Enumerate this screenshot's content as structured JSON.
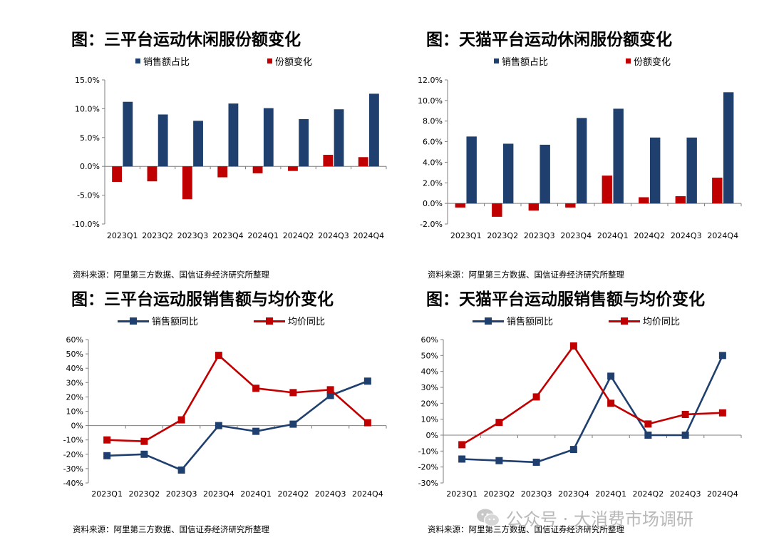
{
  "colors": {
    "navy": "#1f3f6e",
    "red": "#c00000",
    "axis": "#7f7f7f",
    "grid": "#d9d9d9"
  },
  "watermark": {
    "text": "公众号 · 大消费市场调研",
    "icon": "wechat-icon"
  },
  "chart_data": [
    {
      "type": "bar",
      "title": "图：三平台运动休闲服份额变化",
      "categories": [
        "2023Q1",
        "2023Q2",
        "2023Q3",
        "2023Q4",
        "2024Q1",
        "2024Q2",
        "2024Q3",
        "2024Q4"
      ],
      "series": [
        {
          "name": "销售额占比",
          "color": "#1f3f6e",
          "values": [
            11.2,
            9.0,
            7.9,
            10.9,
            10.1,
            8.2,
            9.9,
            12.6
          ]
        },
        {
          "name": "份额变化",
          "color": "#c00000",
          "values": [
            -2.7,
            -2.6,
            -5.7,
            -1.9,
            -1.2,
            -0.8,
            2.0,
            1.6
          ]
        }
      ],
      "ylim": [
        -10,
        15
      ],
      "yticks": [
        -10,
        -5,
        0,
        5,
        10,
        15
      ],
      "ytick_labels": [
        "-10.0%",
        "-5.0%",
        "0.0%",
        "5.0%",
        "10.0%",
        "15.0%"
      ],
      "source": "资料来源：阿里第三方数据、国信证券经济研究所整理"
    },
    {
      "type": "bar",
      "title": "图：天猫平台运动休闲服份额变化",
      "categories": [
        "2023Q1",
        "2023Q2",
        "2023Q3",
        "2023Q4",
        "2024Q1",
        "2024Q2",
        "2024Q3",
        "2024Q4"
      ],
      "series": [
        {
          "name": "销售额占比",
          "color": "#1f3f6e",
          "values": [
            6.5,
            5.8,
            5.7,
            8.3,
            9.2,
            6.4,
            6.4,
            10.8
          ]
        },
        {
          "name": "份额变化",
          "color": "#c00000",
          "values": [
            -0.4,
            -1.3,
            -0.7,
            -0.4,
            2.7,
            0.6,
            0.7,
            2.5
          ]
        }
      ],
      "ylim": [
        -2,
        12
      ],
      "yticks": [
        -2,
        0,
        2,
        4,
        6,
        8,
        10,
        12
      ],
      "ytick_labels": [
        "-2.0%",
        "0.0%",
        "2.0%",
        "4.0%",
        "6.0%",
        "8.0%",
        "10.0%",
        "12.0%"
      ],
      "source": "资料来源：阿里第三方数据、国信证券经济研究所整理"
    },
    {
      "type": "line",
      "title": "图：三平台运动服销售额与均价变化",
      "categories": [
        "2023Q1",
        "2023Q2",
        "2023Q3",
        "2023Q4",
        "2024Q1",
        "2024Q2",
        "2024Q3",
        "2024Q4"
      ],
      "series": [
        {
          "name": "销售额同比",
          "color": "#1f3f6e",
          "values": [
            -21,
            -20,
            -31,
            0,
            -4,
            1,
            21,
            31
          ]
        },
        {
          "name": "均价同比",
          "color": "#c00000",
          "values": [
            -10,
            -11,
            4,
            49,
            26,
            23,
            25,
            2
          ]
        }
      ],
      "ylim": [
        -40,
        60
      ],
      "yticks": [
        -40,
        -30,
        -20,
        -10,
        0,
        10,
        20,
        30,
        40,
        50,
        60
      ],
      "ytick_labels": [
        "-40%",
        "-30%",
        "-20%",
        "-10%",
        "0%",
        "10%",
        "20%",
        "30%",
        "40%",
        "50%",
        "60%"
      ],
      "source": "资料来源：阿里第三方数据、国信证券经济研究所整理"
    },
    {
      "type": "line",
      "title": "图：天猫平台运动服销售额与均价变化",
      "categories": [
        "2023Q1",
        "2023Q2",
        "2023Q3",
        "2023Q4",
        "2024Q1",
        "2024Q2",
        "2024Q3",
        "2024Q4"
      ],
      "series": [
        {
          "name": "销售额同比",
          "color": "#1f3f6e",
          "values": [
            -15,
            -16,
            -17,
            -9,
            37,
            0,
            0,
            50
          ]
        },
        {
          "name": "均价同比",
          "color": "#c00000",
          "values": [
            -6,
            8,
            24,
            56,
            20,
            7,
            13,
            14
          ]
        }
      ],
      "ylim": [
        -30,
        60
      ],
      "yticks": [
        -30,
        -20,
        -10,
        0,
        10,
        20,
        30,
        40,
        50,
        60
      ],
      "ytick_labels": [
        "-30%",
        "-20%",
        "-10%",
        "0%",
        "10%",
        "20%",
        "30%",
        "40%",
        "50%",
        "60%"
      ],
      "source": "资料来源：阿里第三方数据、国信证券经济研究所整理"
    }
  ]
}
